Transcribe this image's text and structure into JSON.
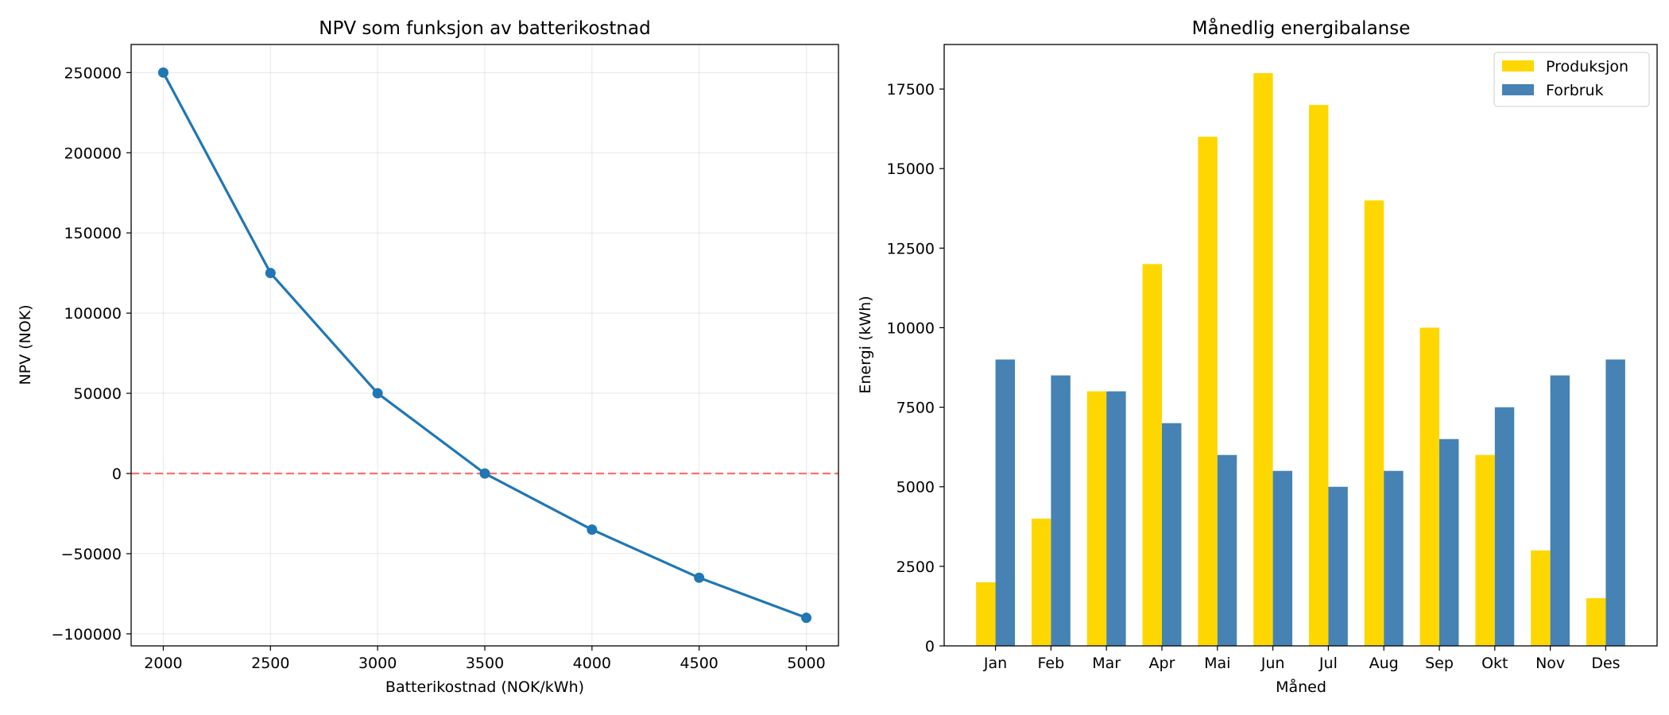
{
  "chart_data": [
    {
      "type": "line",
      "title": "NPV som funksjon av batterikostnad",
      "xlabel": "Batterikostnad (NOK/kWh)",
      "ylabel": "NPV (NOK)",
      "x": [
        2000,
        2500,
        3000,
        3500,
        4000,
        4500,
        5000
      ],
      "y": [
        250000,
        125000,
        50000,
        0,
        -35000,
        -65000,
        -90000
      ],
      "xlim": [
        1850,
        5150
      ],
      "ylim": [
        -107500,
        267500
      ],
      "xticks": [
        2000,
        2500,
        3000,
        3500,
        4000,
        4500,
        5000
      ],
      "yticks": [
        -100000,
        -50000,
        0,
        50000,
        100000,
        150000,
        200000,
        250000
      ],
      "xtick_labels": [
        "2000",
        "2500",
        "3000",
        "3500",
        "4000",
        "4500",
        "5000"
      ],
      "ytick_labels": [
        "−100000",
        "−50000",
        "0",
        "50000",
        "100000",
        "150000",
        "200000",
        "250000"
      ],
      "reference_line": {
        "y": 0,
        "style": "dashed",
        "color": "#ff7070"
      },
      "grid": true,
      "colors": {
        "line": "#1f77b4"
      }
    },
    {
      "type": "bar",
      "title": "Månedlig energibalanse",
      "xlabel": "Måned",
      "ylabel": "Energi (kWh)",
      "categories": [
        "Jan",
        "Feb",
        "Mar",
        "Apr",
        "Mai",
        "Jun",
        "Jul",
        "Aug",
        "Sep",
        "Okt",
        "Nov",
        "Des"
      ],
      "series": [
        {
          "name": "Produksjon",
          "color": "#ffd700",
          "values": [
            2000,
            4000,
            8000,
            12000,
            16000,
            18000,
            17000,
            14000,
            10000,
            6000,
            3000,
            1500
          ]
        },
        {
          "name": "Forbruk",
          "color": "#4682b4",
          "values": [
            9000,
            8500,
            8000,
            7000,
            6000,
            5500,
            5000,
            5500,
            6500,
            7500,
            8500,
            9000
          ]
        }
      ],
      "ylim": [
        0,
        18900
      ],
      "yticks": [
        0,
        2500,
        5000,
        7500,
        10000,
        12500,
        15000,
        17500
      ],
      "ytick_labels": [
        "0",
        "2500",
        "5000",
        "7500",
        "10000",
        "12500",
        "15000",
        "17500"
      ],
      "legend": "top-right",
      "grid": false
    }
  ]
}
